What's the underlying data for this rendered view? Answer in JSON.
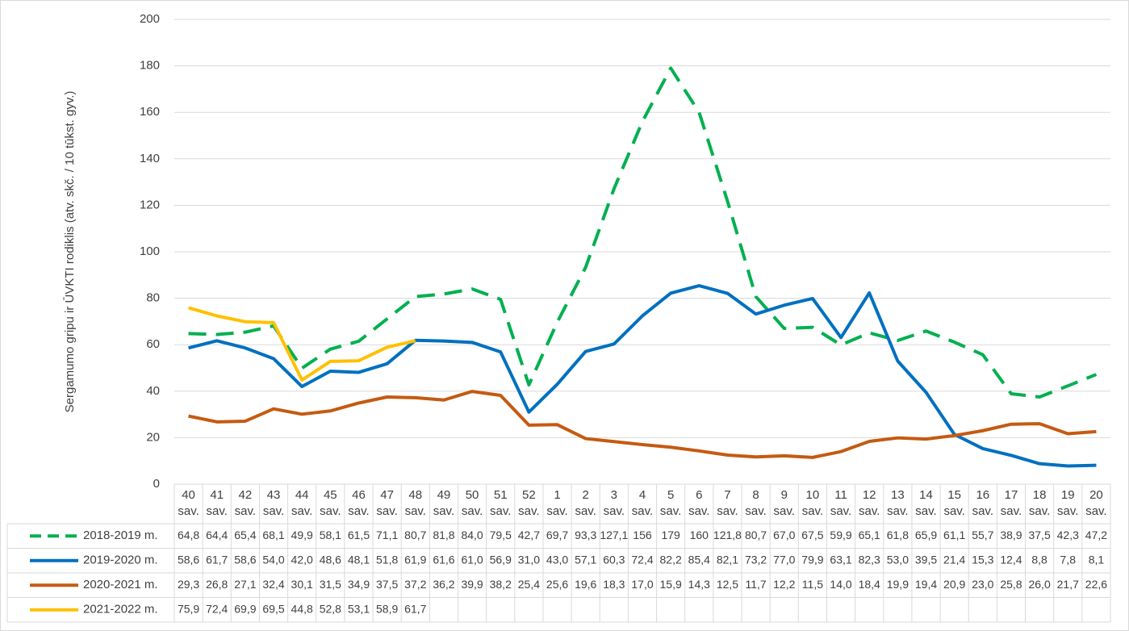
{
  "chart_data": {
    "type": "line",
    "y_label": "Sergamumo gripu ir ŪVKTI rodiklis (atv. skč. / 10 tūkst. gyv.)",
    "categories": [
      "40 sav.",
      "41 sav.",
      "42 sav.",
      "43 sav.",
      "44 sav.",
      "45 sav.",
      "46 sav.",
      "47 sav.",
      "48 sav.",
      "49 sav.",
      "50 sav.",
      "51 sav.",
      "52 sav.",
      "1 sav.",
      "2 sav.",
      "3 sav.",
      "4 sav.",
      "5 sav.",
      "6 sav.",
      "7 sav.",
      "8 sav.",
      "9 sav.",
      "10 sav.",
      "11 sav.",
      "12 sav.",
      "13 sav.",
      "14 sav.",
      "15 sav.",
      "16 sav.",
      "17 sav.",
      "18 sav.",
      "19 sav.",
      "20 sav."
    ],
    "ylim": [
      0,
      200
    ],
    "yticks": [
      0,
      20,
      40,
      60,
      80,
      100,
      120,
      140,
      160,
      180,
      200
    ],
    "grid": true,
    "series": [
      {
        "name": "2018-2019 m.",
        "color": "#00b050",
        "dashed": true,
        "values": [
          64.8,
          64.4,
          65.4,
          68.1,
          49.9,
          58.1,
          61.5,
          71.1,
          80.7,
          81.8,
          84.0,
          79.5,
          42.7,
          69.7,
          93.3,
          127.1,
          156,
          179,
          160,
          121.8,
          80.7,
          67.0,
          67.5,
          59.9,
          65.1,
          61.8,
          65.9,
          61.1,
          55.7,
          38.9,
          37.5,
          42.3,
          47.2
        ],
        "value_labels": [
          "64,8",
          "64,4",
          "65,4",
          "68,1",
          "49,9",
          "58,1",
          "61,5",
          "71,1",
          "80,7",
          "81,8",
          "84,0",
          "79,5",
          "42,7",
          "69,7",
          "93,3",
          "127,1",
          "156",
          "179",
          "160",
          "121,8",
          "80,7",
          "67,0",
          "67,5",
          "59,9",
          "65,1",
          "61,8",
          "65,9",
          "61,1",
          "55,7",
          "38,9",
          "37,5",
          "42,3",
          "47,2"
        ]
      },
      {
        "name": "2019-2020 m.",
        "color": "#0070c0",
        "dashed": false,
        "values": [
          58.6,
          61.7,
          58.6,
          54.0,
          42.0,
          48.6,
          48.1,
          51.8,
          61.9,
          61.6,
          61.0,
          56.9,
          31.0,
          43.0,
          57.1,
          60.3,
          72.4,
          82.2,
          85.4,
          82.1,
          73.2,
          77.0,
          79.9,
          63.1,
          82.3,
          53.0,
          39.5,
          21.4,
          15.3,
          12.4,
          8.8,
          7.8,
          8.1
        ],
        "value_labels": [
          "58,6",
          "61,7",
          "58,6",
          "54,0",
          "42,0",
          "48,6",
          "48,1",
          "51,8",
          "61,9",
          "61,6",
          "61,0",
          "56,9",
          "31,0",
          "43,0",
          "57,1",
          "60,3",
          "72,4",
          "82,2",
          "85,4",
          "82,1",
          "73,2",
          "77,0",
          "79,9",
          "63,1",
          "82,3",
          "53,0",
          "39,5",
          "21,4",
          "15,3",
          "12,4",
          "8,8",
          "7,8",
          "8,1"
        ]
      },
      {
        "name": "2020-2021 m.",
        "color": "#c55a11",
        "dashed": false,
        "values": [
          29.3,
          26.8,
          27.1,
          32.4,
          30.1,
          31.5,
          34.9,
          37.5,
          37.2,
          36.2,
          39.9,
          38.2,
          25.4,
          25.6,
          19.6,
          18.3,
          17.0,
          15.9,
          14.3,
          12.5,
          11.7,
          12.2,
          11.5,
          14.0,
          18.4,
          19.9,
          19.4,
          20.9,
          23.0,
          25.8,
          26.0,
          21.7,
          22.6
        ],
        "value_labels": [
          "29,3",
          "26,8",
          "27,1",
          "32,4",
          "30,1",
          "31,5",
          "34,9",
          "37,5",
          "37,2",
          "36,2",
          "39,9",
          "38,2",
          "25,4",
          "25,6",
          "19,6",
          "18,3",
          "17,0",
          "15,9",
          "14,3",
          "12,5",
          "11,7",
          "12,2",
          "11,5",
          "14,0",
          "18,4",
          "19,9",
          "19,4",
          "20,9",
          "23,0",
          "25,8",
          "26,0",
          "21,7",
          "22,6"
        ]
      },
      {
        "name": "2021-2022 m.",
        "color": "#ffc000",
        "dashed": false,
        "values": [
          75.9,
          72.4,
          69.9,
          69.5,
          44.8,
          52.8,
          53.1,
          58.9,
          61.7,
          null,
          null,
          null,
          null,
          null,
          null,
          null,
          null,
          null,
          null,
          null,
          null,
          null,
          null,
          null,
          null,
          null,
          null,
          null,
          null,
          null,
          null,
          null,
          null
        ],
        "value_labels": [
          "75,9",
          "72,4",
          "69,9",
          "69,5",
          "44,8",
          "52,8",
          "53,1",
          "58,9",
          "61,7",
          null,
          null,
          null,
          null,
          null,
          null,
          null,
          null,
          null,
          null,
          null,
          null,
          null,
          null,
          null,
          null,
          null,
          null,
          null,
          null,
          null,
          null,
          null,
          null
        ]
      }
    ]
  }
}
